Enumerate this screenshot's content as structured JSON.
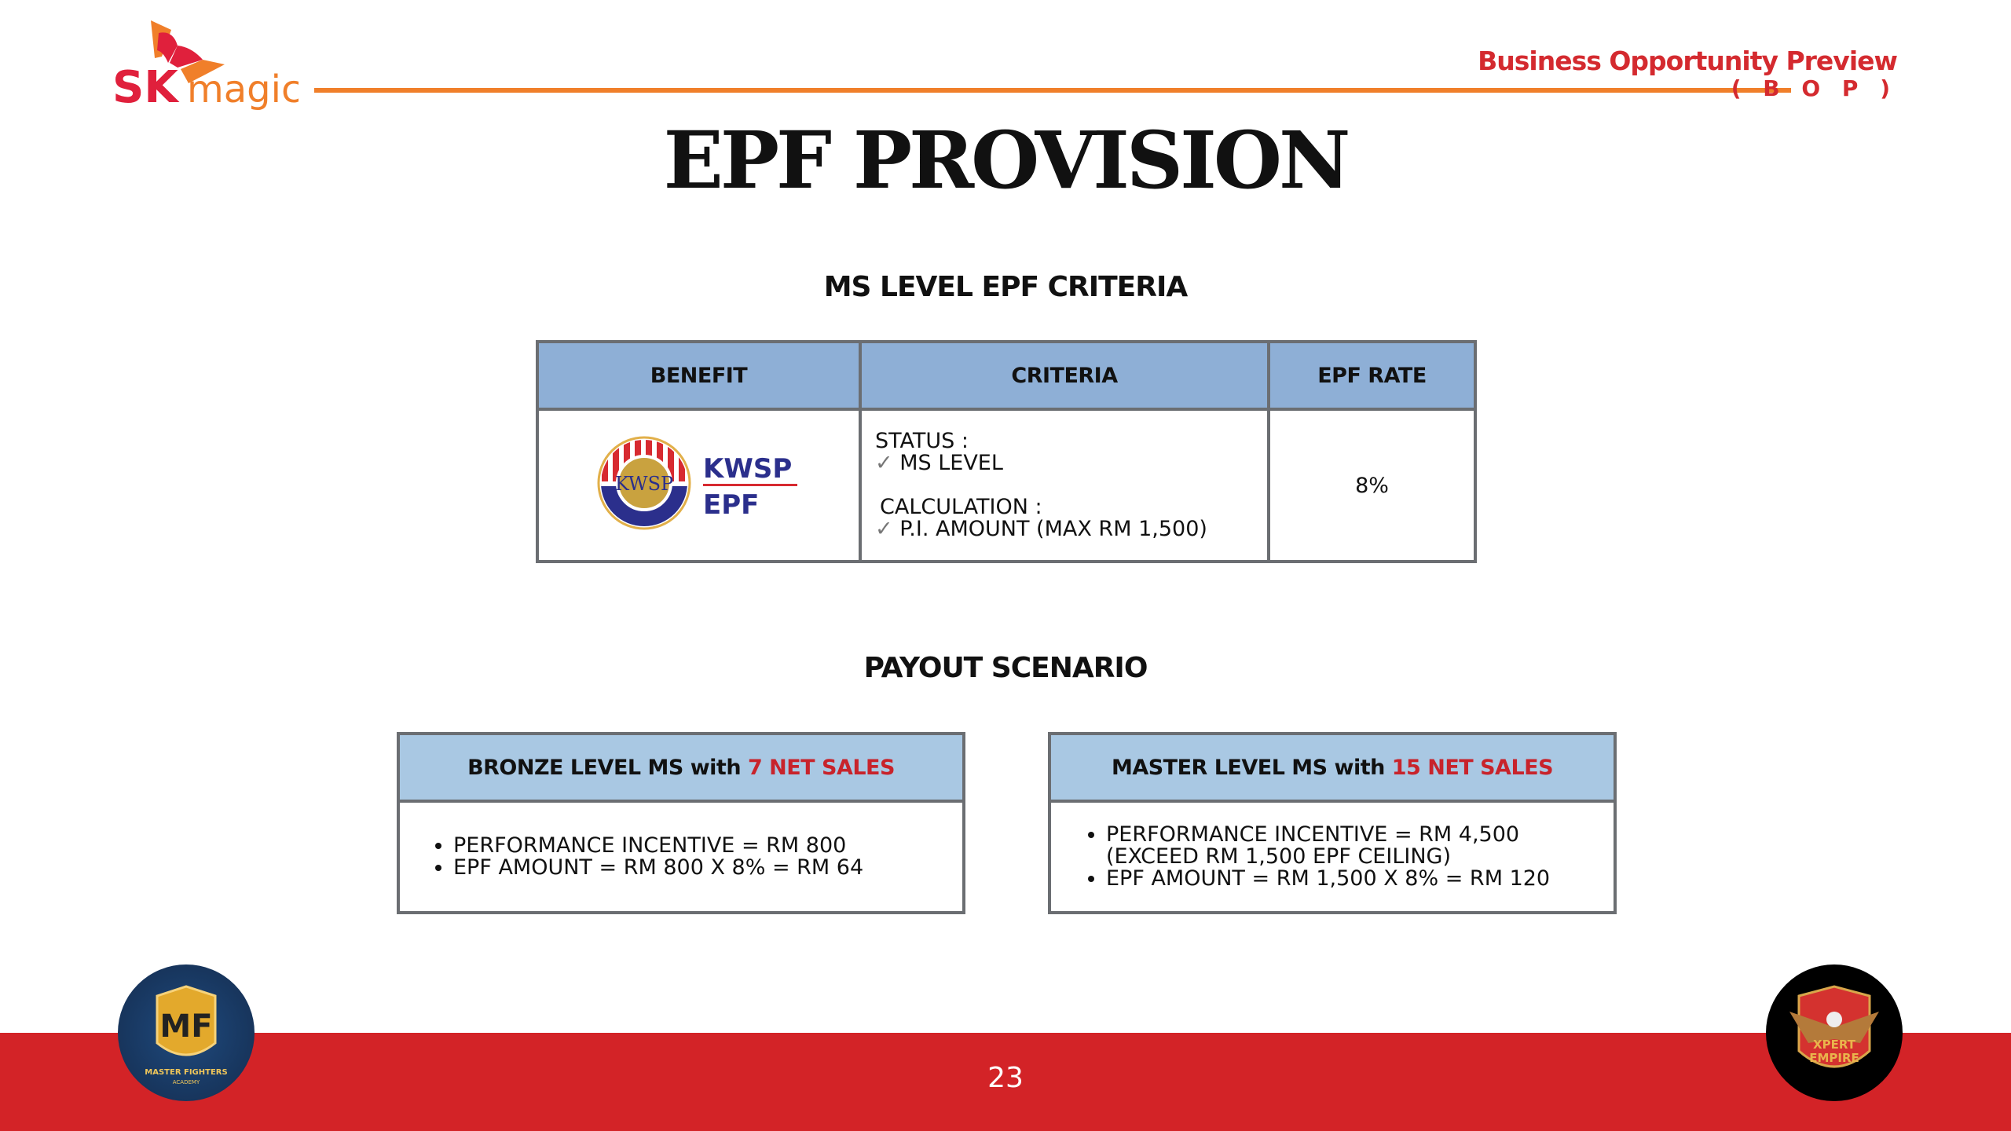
{
  "header": {
    "logo_text": "SK magic",
    "bop_title": "Business Opportunity Preview",
    "bop_subtitle": "( B O P )"
  },
  "page_title": "EPF PROVISION",
  "criteria_section": {
    "heading": "MS LEVEL EPF CRITERIA",
    "columns": [
      "BENEFIT",
      "CRITERIA",
      "EPF RATE"
    ],
    "row": {
      "benefit_logo": {
        "line1": "KWSP",
        "line2": "EPF"
      },
      "status_label": "STATUS :",
      "status_item": "MS LEVEL",
      "calculation_label": "CALCULATION :",
      "calculation_item": "P.I. AMOUNT (MAX RM 1,500)",
      "epf_rate": "8%"
    }
  },
  "payout_section": {
    "heading": "PAYOUT SCENARIO",
    "scenarios": [
      {
        "title_prefix": "BRONZE LEVEL MS with",
        "title_highlight": "7 NET SALES",
        "items": [
          "PERFORMANCE INCENTIVE = RM 800",
          "EPF AMOUNT = RM 800 X 8% = RM 64"
        ]
      },
      {
        "title_prefix": "MASTER LEVEL MS with",
        "title_highlight": "15 NET SALES",
        "items": [
          "PERFORMANCE INCENTIVE = RM 4,500\n(EXCEED RM 1,500 EPF CEILING)",
          "EPF AMOUNT = RM 1,500 X 8% = RM 120"
        ]
      }
    ]
  },
  "footer": {
    "page_number": "23",
    "left_badge": "MASTER FIGHTERS ACADEMY",
    "right_badge": "XPERT EMPIRE"
  },
  "colors": {
    "brand_red": "#d32327",
    "brand_orange": "#f07f2a",
    "table_header": "#8eafd6",
    "box_header": "#a9c8e3",
    "highlight_red": "#c8232b"
  }
}
